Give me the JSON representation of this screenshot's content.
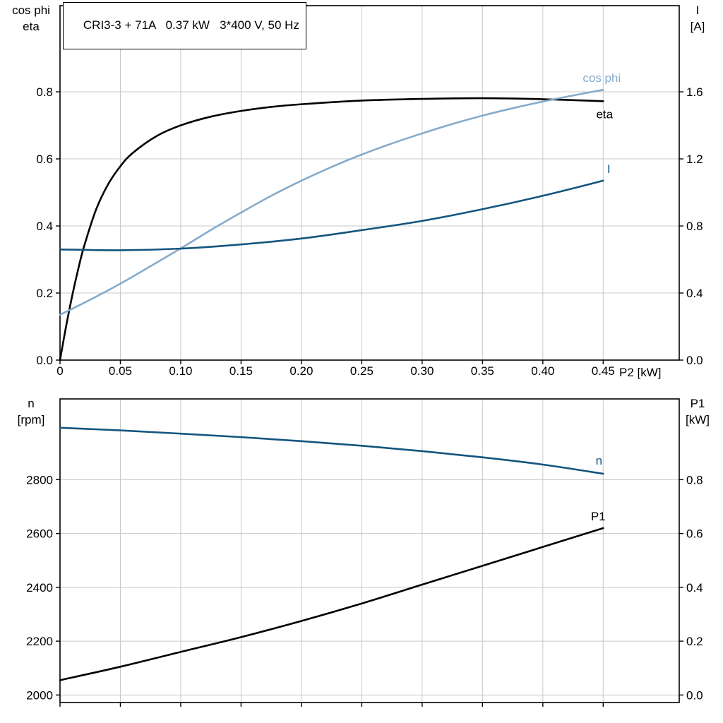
{
  "colors": {
    "background": "#ffffff",
    "axis": "#000000",
    "grid": "#c8c8c8",
    "curve_black": "#000000",
    "curve_light_blue": "#85abcb",
    "curve_dark_blue": "#14557e"
  },
  "chart_data": [
    {
      "type": "line",
      "panel": "top",
      "title": "CRI3-3 + 71A   0.37 kW   3*400 V, 50 Hz",
      "xlabel": "P2 [kW]",
      "ylabel_left_lines": [
        "cos phi",
        "eta"
      ],
      "ylabel_right_lines": [
        "I",
        "[A]"
      ],
      "xlim": [
        0,
        0.513
      ],
      "xticks": [
        0,
        0.05,
        0.1,
        0.15,
        0.2,
        0.25,
        0.3,
        0.35,
        0.4,
        0.45
      ],
      "xtick_labels": [
        "0",
        "0.05",
        "0.10",
        "0.15",
        "0.20",
        "0.25",
        "0.30",
        "0.35",
        "0.40",
        "0.45"
      ],
      "ylim_left": [
        0,
        1.057
      ],
      "yticks_left": [
        0.0,
        0.2,
        0.4,
        0.6,
        0.8
      ],
      "ytick_labels_left": [
        "0.0",
        "0.2",
        "0.4",
        "0.6",
        "0.8"
      ],
      "ylim_right": [
        0,
        2.114
      ],
      "yticks_right": [
        0.0,
        0.4,
        0.8,
        1.2,
        1.6
      ],
      "ytick_labels_right": [
        "0.0",
        "0.4",
        "0.8",
        "1.2",
        "1.6"
      ],
      "grid": true,
      "series": [
        {
          "name": "eta",
          "axis": "left",
          "color": "#000000",
          "x": [
            0,
            0.005,
            0.01,
            0.015,
            0.02,
            0.03,
            0.04,
            0.05,
            0.06,
            0.08,
            0.1,
            0.125,
            0.15,
            0.175,
            0.2,
            0.25,
            0.3,
            0.35,
            0.4,
            0.45
          ],
          "y": [
            0,
            0.1,
            0.19,
            0.27,
            0.34,
            0.45,
            0.525,
            0.578,
            0.617,
            0.668,
            0.7,
            0.726,
            0.743,
            0.755,
            0.763,
            0.774,
            0.779,
            0.781,
            0.778,
            0.772
          ]
        },
        {
          "name": "cos phi",
          "axis": "left",
          "color": "#85abcb",
          "x": [
            0,
            0.025,
            0.05,
            0.075,
            0.1,
            0.125,
            0.15,
            0.175,
            0.2,
            0.225,
            0.25,
            0.275,
            0.3,
            0.325,
            0.35,
            0.375,
            0.4,
            0.425,
            0.45
          ],
          "y": [
            0.135,
            0.18,
            0.228,
            0.28,
            0.333,
            0.388,
            0.44,
            0.49,
            0.535,
            0.576,
            0.613,
            0.646,
            0.676,
            0.704,
            0.729,
            0.751,
            0.771,
            0.789,
            0.806
          ]
        },
        {
          "name": "I",
          "axis": "right",
          "color": "#14557e",
          "x": [
            0,
            0.05,
            0.1,
            0.15,
            0.2,
            0.25,
            0.3,
            0.35,
            0.4,
            0.45
          ],
          "y": [
            0.66,
            0.655,
            0.665,
            0.69,
            0.725,
            0.775,
            0.83,
            0.9,
            0.98,
            1.07
          ]
        }
      ]
    },
    {
      "type": "line",
      "panel": "bottom",
      "title": "",
      "xlabel": "",
      "ylabel_left_lines": [
        "n",
        "[rpm]"
      ],
      "ylabel_right_lines": [
        "P1",
        "[kW]"
      ],
      "xlim": [
        0,
        0.513
      ],
      "xticks": [
        0,
        0.05,
        0.1,
        0.15,
        0.2,
        0.25,
        0.3,
        0.35,
        0.4,
        0.45
      ],
      "xtick_labels": [],
      "ylim_left": [
        1972,
        3100
      ],
      "yticks_left": [
        2000,
        2200,
        2400,
        2600,
        2800
      ],
      "ytick_labels_left": [
        "2000",
        "2200",
        "2400",
        "2600",
        "2800"
      ],
      "ylim_right": [
        -0.028,
        1.1
      ],
      "yticks_right": [
        0.0,
        0.2,
        0.4,
        0.6,
        0.8
      ],
      "ytick_labels_right": [
        "0.0",
        "0.2",
        "0.4",
        "0.6",
        "0.8"
      ],
      "grid": true,
      "series": [
        {
          "name": "n",
          "axis": "left",
          "color": "#14557e",
          "x": [
            0,
            0.05,
            0.1,
            0.15,
            0.2,
            0.25,
            0.3,
            0.35,
            0.4,
            0.45
          ],
          "y": [
            2993,
            2983,
            2971,
            2958,
            2943,
            2926,
            2906,
            2883,
            2856,
            2822
          ]
        },
        {
          "name": "P1",
          "axis": "right",
          "color": "#000000",
          "x": [
            0,
            0.05,
            0.1,
            0.15,
            0.2,
            0.25,
            0.3,
            0.35,
            0.4,
            0.45
          ],
          "y": [
            0.055,
            0.105,
            0.16,
            0.215,
            0.275,
            0.34,
            0.41,
            0.48,
            0.55,
            0.62
          ]
        }
      ]
    }
  ]
}
